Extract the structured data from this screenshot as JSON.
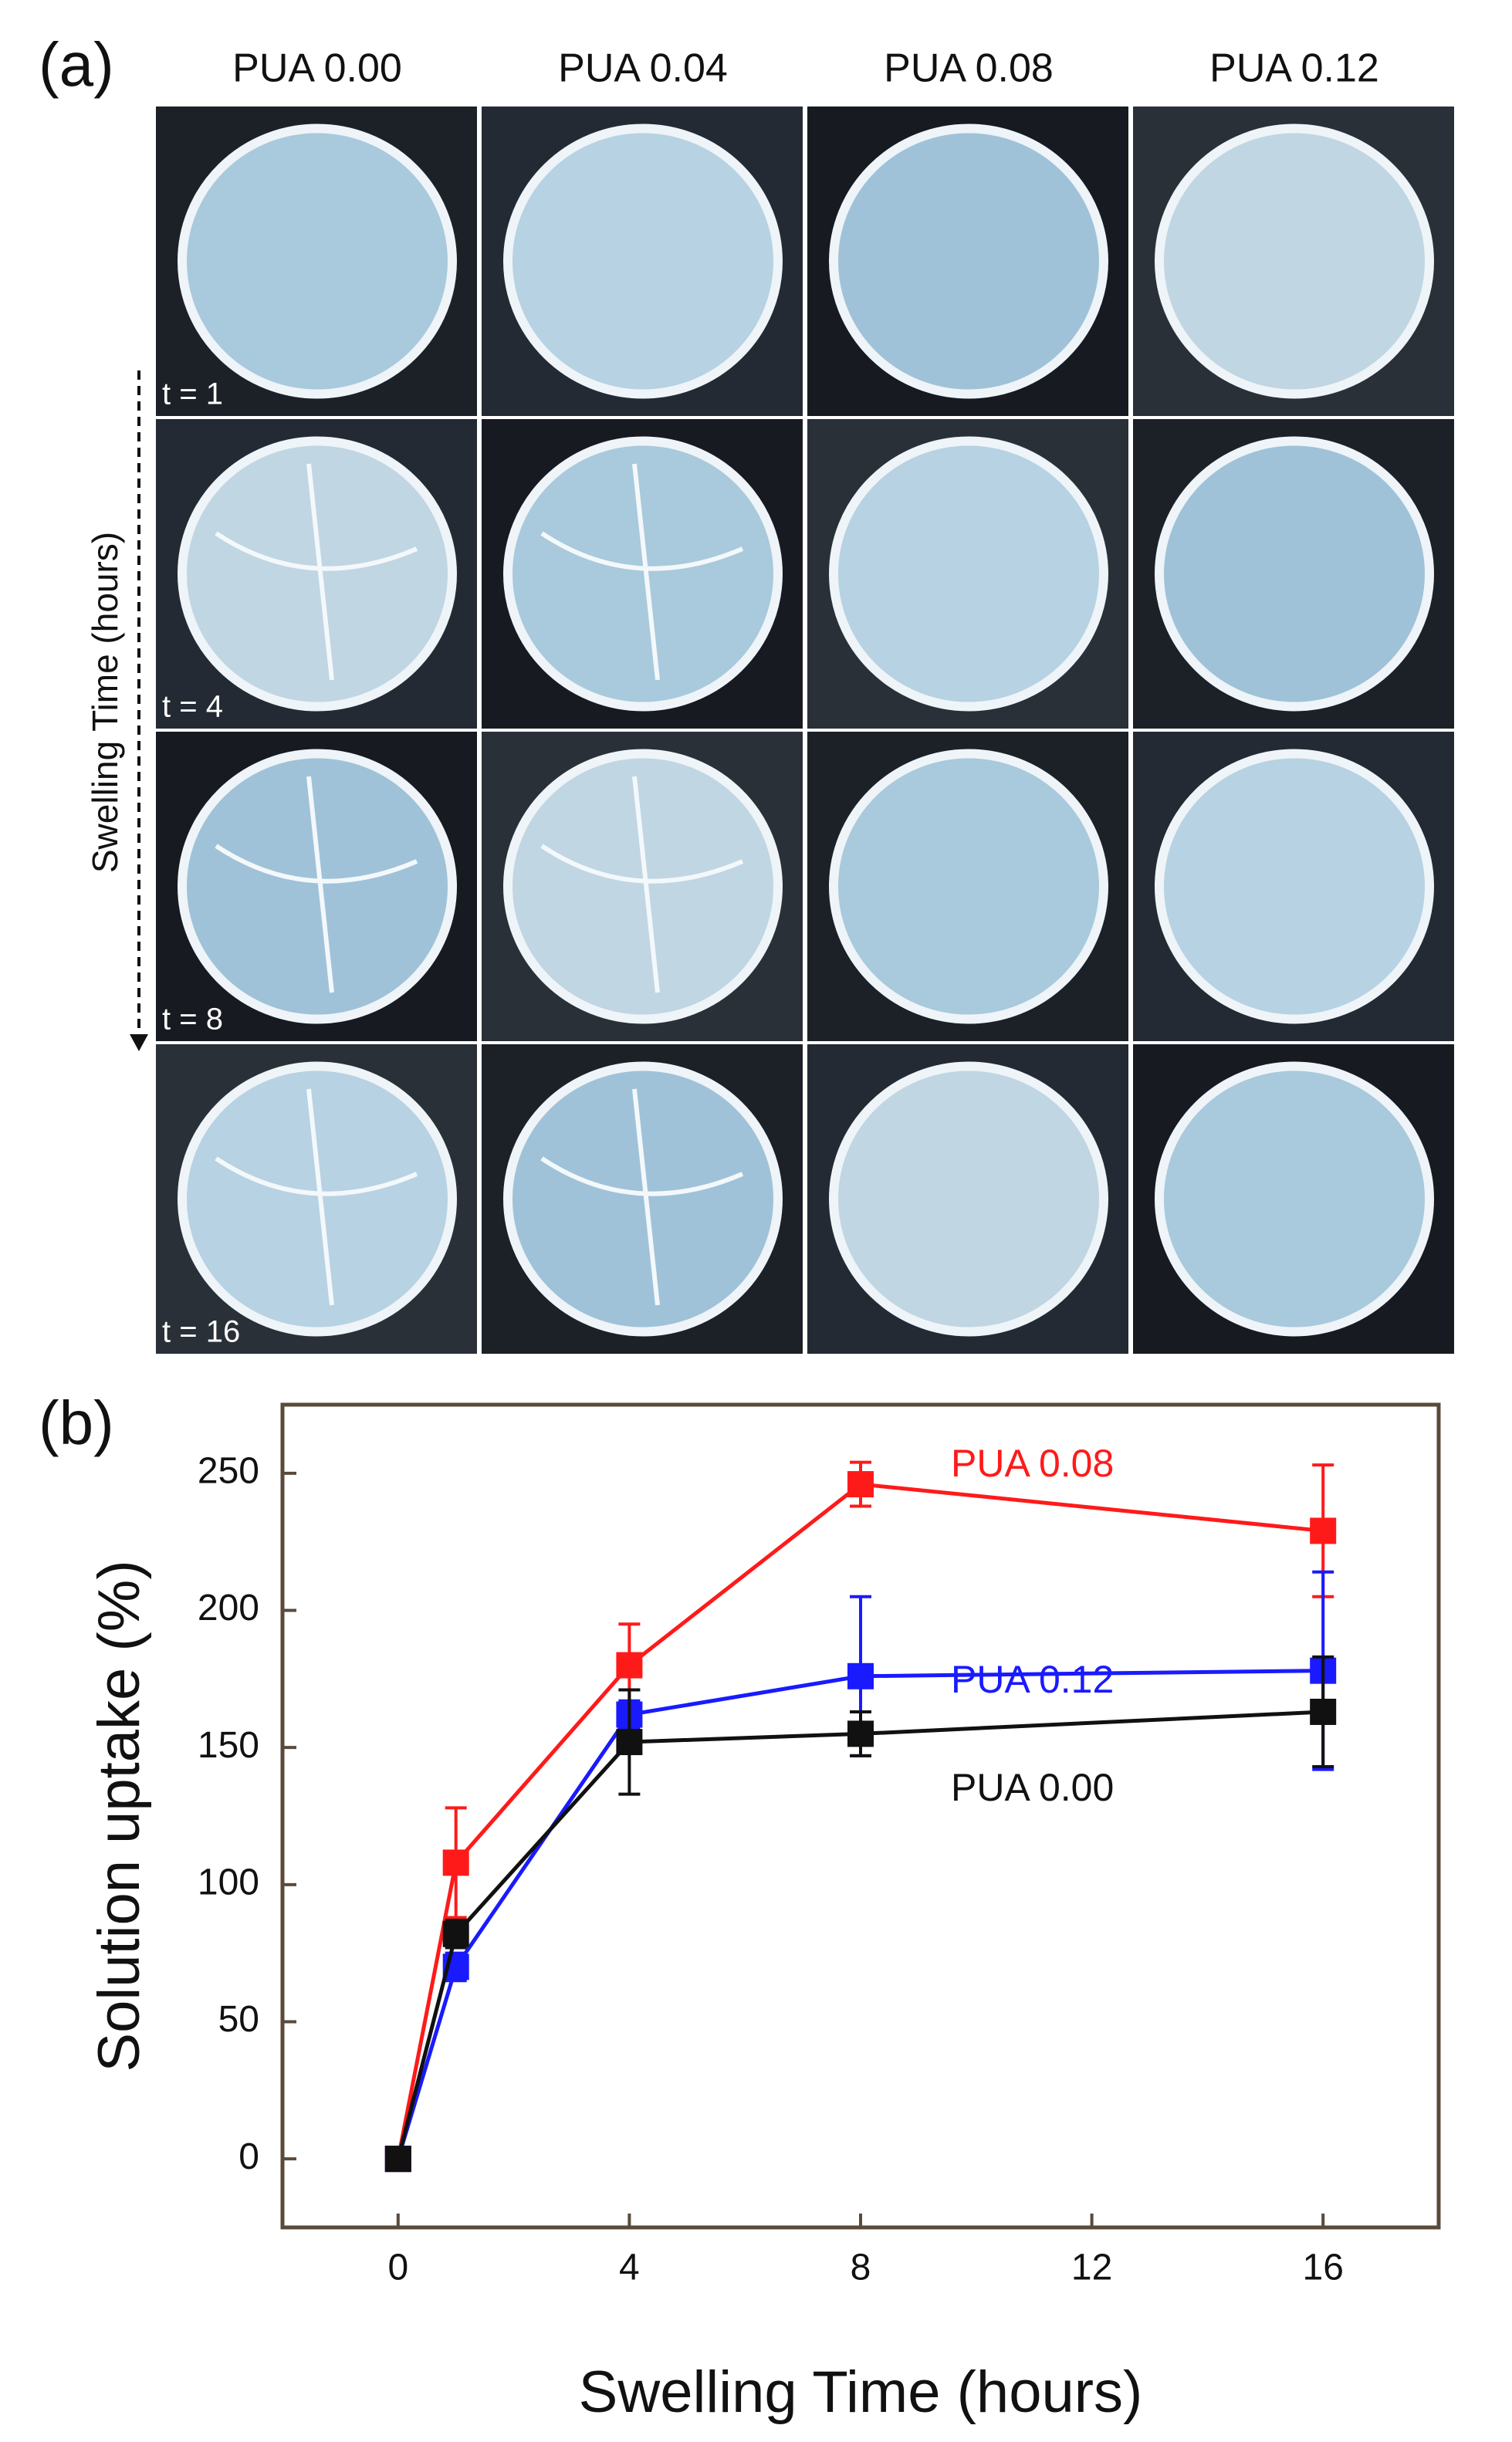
{
  "panel_a": {
    "label": "(a)",
    "columns": [
      "PUA 0.00",
      "PUA 0.04",
      "PUA 0.08",
      "PUA 0.12"
    ],
    "rows": [
      "t = 1",
      "t = 4",
      "t = 8",
      "t = 16"
    ],
    "axis_label": "Swelling Time (hours)"
  },
  "chart_data": {
    "type": "line",
    "panel_label": "(b)",
    "x_label": "Swelling Time (hours)",
    "y_label": "Solution uptake (%)",
    "x": [
      0,
      1,
      4,
      8,
      16
    ],
    "xlim": [
      -2,
      18
    ],
    "xticks": [
      0,
      4,
      8,
      12,
      16
    ],
    "ylim": [
      -25,
      275
    ],
    "yticks": [
      0,
      50,
      100,
      150,
      200,
      250
    ],
    "series": [
      {
        "name": "PUA 0.08",
        "color": "#ff1a1a",
        "values": [
          0,
          108,
          180,
          246,
          229
        ],
        "errors": [
          0,
          20,
          15,
          8,
          24
        ]
      },
      {
        "name": "PUA 0.12",
        "color": "#1a1aff",
        "values": [
          0,
          70,
          162,
          176,
          178
        ],
        "errors": [
          0,
          5,
          5,
          29,
          36
        ]
      },
      {
        "name": "PUA 0.00",
        "color": "#111111",
        "values": [
          0,
          82,
          152,
          155,
          163
        ],
        "errors": [
          0,
          5,
          19,
          8,
          20
        ]
      }
    ]
  }
}
